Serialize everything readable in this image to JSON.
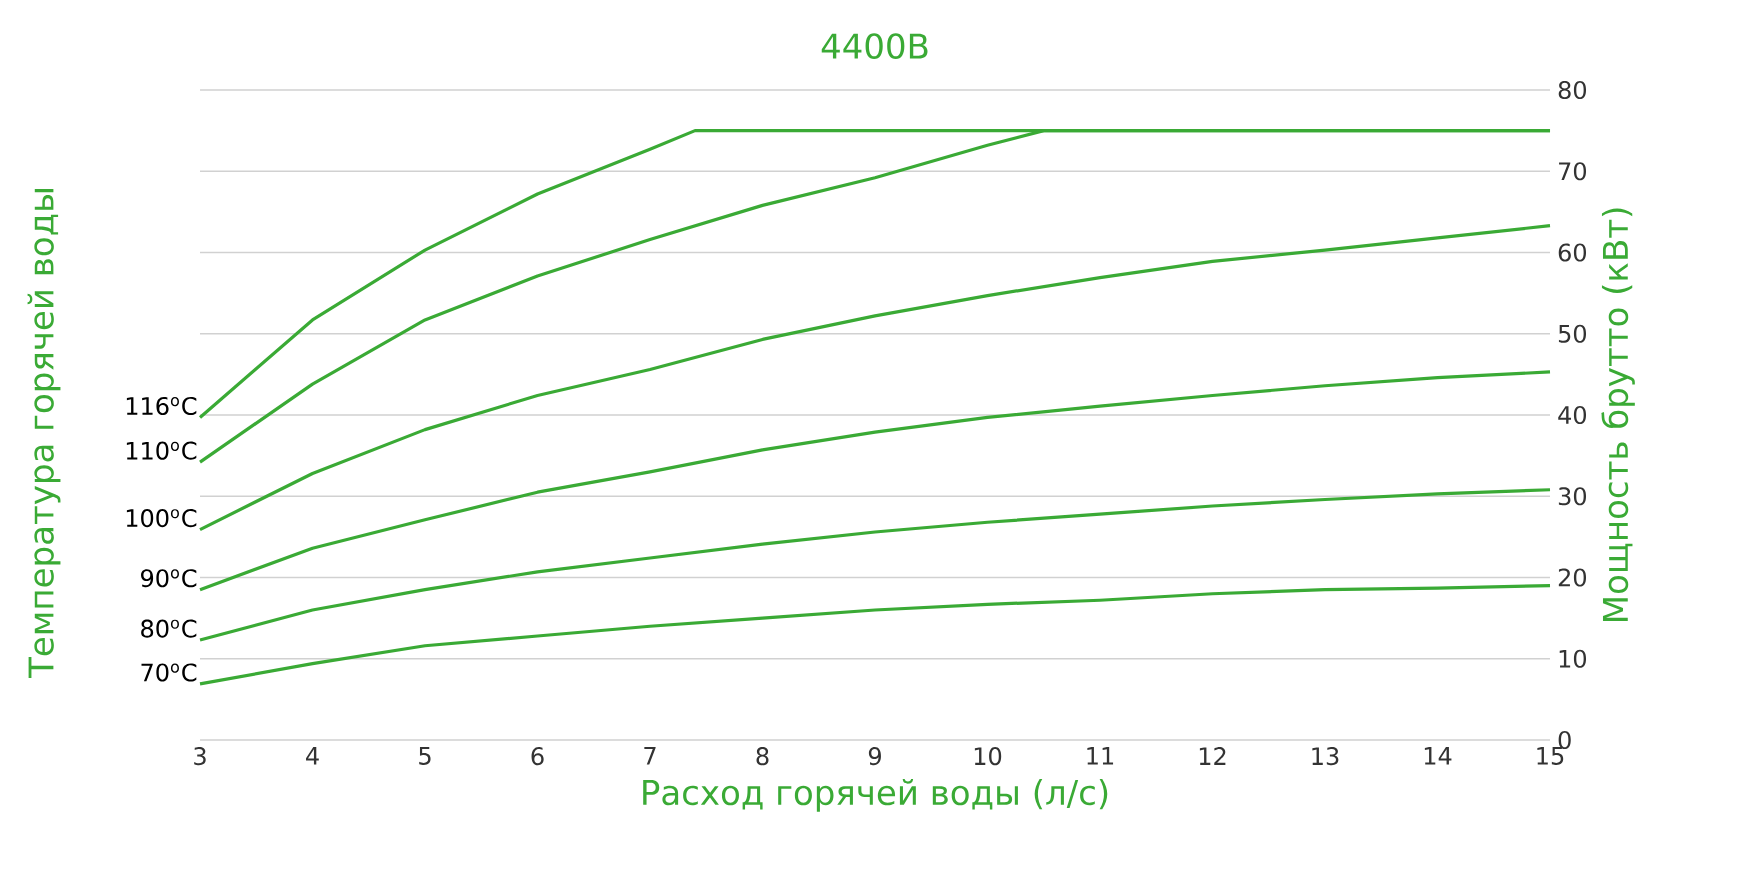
{
  "chart_data": {
    "type": "line",
    "title": "4400В",
    "xlabel": "Расход горячей воды (л/с)",
    "ylabel": "Мощность брутто (кВт)",
    "annotations": [
      "Температура горячей воды"
    ],
    "color": "#3aaa35",
    "grid": "y",
    "marker": "none",
    "line_style": "solid",
    "xlim": [
      3,
      15
    ],
    "xticks": [
      3,
      4,
      5,
      6,
      7,
      8,
      9,
      10,
      11,
      12,
      13,
      14,
      15
    ],
    "ylim": [
      0,
      80
    ],
    "yticks": [
      0,
      10,
      20,
      30,
      40,
      50,
      60,
      70,
      80
    ],
    "series": [
      {
        "name": "116$^{o}$C",
        "color": "#3aaa35",
        "x": [
          3,
          4,
          5,
          6,
          7,
          7.4,
          8,
          9,
          10,
          11,
          12,
          13,
          14,
          15
        ],
        "values": [
          39.7,
          51.7,
          60.3,
          67.2,
          72.7,
          75,
          75,
          75,
          75,
          75,
          75,
          75,
          75,
          75
        ]
      },
      {
        "name": "110$^{o}$C",
        "color": "#3aaa35",
        "x": [
          3,
          4,
          5,
          6,
          7,
          8,
          9,
          10,
          10.5,
          11,
          12,
          13,
          14,
          15
        ],
        "values": [
          34.2,
          43.8,
          51.7,
          57.1,
          61.6,
          65.8,
          69.2,
          73.2,
          75,
          75,
          75,
          75,
          75,
          75
        ]
      },
      {
        "name": "100$^{o}$C",
        "color": "#3aaa35",
        "x": [
          3,
          4,
          5,
          6,
          7,
          8,
          9,
          10,
          11,
          12,
          13,
          14,
          15
        ],
        "values": [
          25.9,
          32.8,
          38.2,
          42.4,
          45.6,
          49.3,
          52.2,
          54.7,
          56.9,
          58.9,
          60.3,
          61.8,
          63.3
        ]
      },
      {
        "name": "90$^{o}$C",
        "color": "#3aaa35",
        "x": [
          3,
          4,
          5,
          6,
          7,
          8,
          9,
          10,
          11,
          12,
          13,
          14,
          15
        ],
        "values": [
          18.5,
          23.6,
          27.1,
          30.5,
          33,
          35.7,
          37.9,
          39.7,
          41.1,
          42.4,
          43.6,
          44.6,
          45.3
        ]
      },
      {
        "name": "80$^{o}$C",
        "color": "#3aaa35",
        "x": [
          3,
          4,
          5,
          6,
          7,
          8,
          9,
          10,
          11,
          12,
          13,
          14,
          15
        ],
        "values": [
          12.3,
          16,
          18.5,
          20.7,
          22.4,
          24.1,
          25.6,
          26.8,
          27.8,
          28.8,
          29.6,
          30.3,
          30.8
        ]
      },
      {
        "name": "70$^{o}$C",
        "color": "#3aaa35",
        "x": [
          3,
          4,
          5,
          6,
          7,
          8,
          9,
          10,
          11,
          12,
          13,
          14,
          15
        ],
        "values": [
          6.9,
          9.4,
          11.6,
          12.8,
          14,
          15,
          16,
          16.7,
          17.2,
          18,
          18.5,
          18.7,
          19
        ]
      }
    ]
  }
}
